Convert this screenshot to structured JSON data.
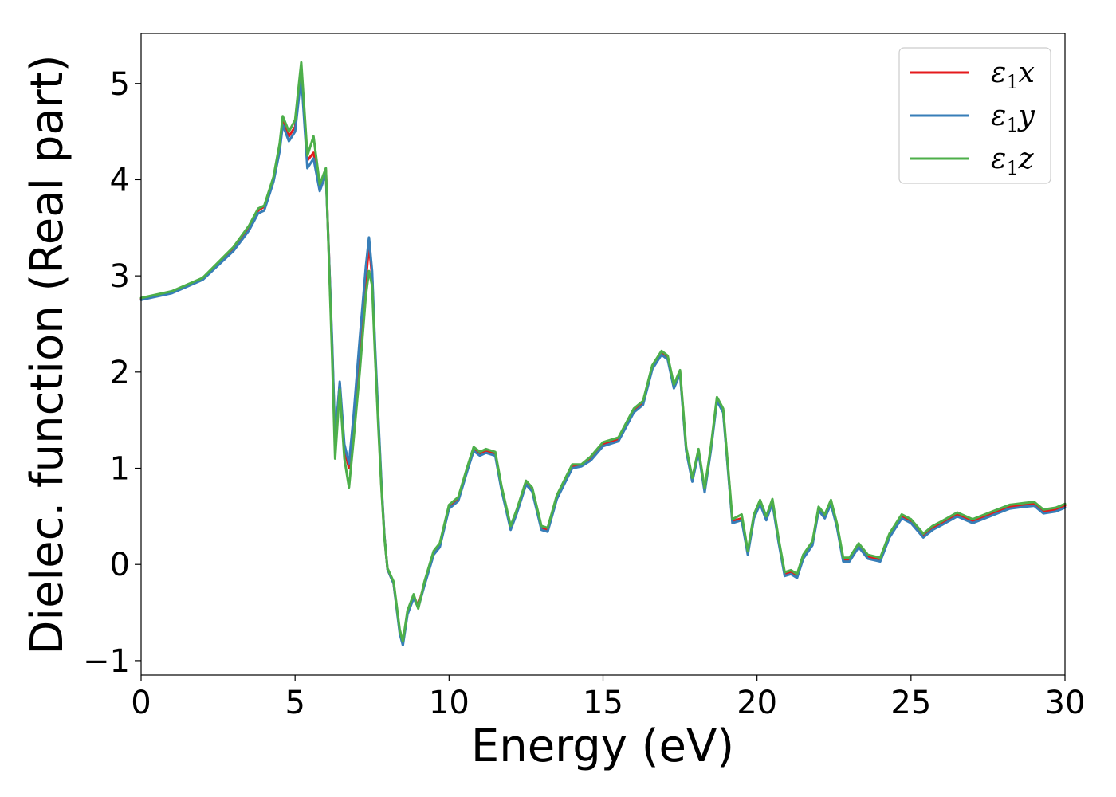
{
  "chart_data": {
    "type": "line",
    "title": "",
    "xlabel": "Energy (eV)",
    "ylabel": "Dielec. function (Real part)",
    "xlim": [
      0,
      30
    ],
    "ylim": [
      -1.15,
      5.52
    ],
    "xticks": [
      0,
      5,
      10,
      15,
      20,
      25,
      30
    ],
    "xtick_labels": [
      "0",
      "5",
      "10",
      "15",
      "20",
      "25",
      "30"
    ],
    "yticks": [
      -1,
      0,
      1,
      2,
      3,
      4,
      5
    ],
    "ytick_labels": [
      "−1",
      "0",
      "1",
      "2",
      "3",
      "4",
      "5"
    ],
    "grid": false,
    "legend_position": "top-right",
    "series": [
      {
        "name": "ε1x",
        "legend_symbol": "ε",
        "legend_subscript": "1",
        "legend_suffix": "x",
        "color": "#e41a1c",
        "x": [
          0,
          1,
          2,
          3,
          3.5,
          3.8,
          4,
          4.3,
          4.5,
          4.6,
          4.8,
          5,
          5.2,
          5.4,
          5.6,
          5.8,
          6,
          6.1,
          6.2,
          6.3,
          6.45,
          6.6,
          6.75,
          6.9,
          7.1,
          7.3,
          7.4,
          7.5,
          7.6,
          7.7,
          7.8,
          7.9,
          8,
          8.2,
          8.4,
          8.5,
          8.65,
          8.85,
          9,
          9.2,
          9.5,
          9.7,
          10,
          10.3,
          10.6,
          10.8,
          11,
          11.2,
          11.5,
          11.7,
          12,
          12.2,
          12.5,
          12.7,
          13,
          13.2,
          13.5,
          14,
          14.3,
          14.6,
          15,
          15.5,
          16,
          16.3,
          16.6,
          16.9,
          17.1,
          17.3,
          17.5,
          17.7,
          17.9,
          18.1,
          18.3,
          18.5,
          18.7,
          18.9,
          19.2,
          19.5,
          19.7,
          19.9,
          20.1,
          20.3,
          20.5,
          20.7,
          20.9,
          21.1,
          21.3,
          21.5,
          21.8,
          22,
          22.2,
          22.4,
          22.6,
          22.8,
          23,
          23.3,
          23.6,
          24,
          24.3,
          24.7,
          25,
          25.4,
          25.7,
          26,
          26.5,
          27,
          27.4,
          27.8,
          28.2,
          28.7,
          29,
          29.3,
          29.7,
          30
        ],
        "y": [
          2.76,
          2.83,
          2.97,
          3.28,
          3.5,
          3.68,
          3.72,
          4.0,
          4.32,
          4.6,
          4.45,
          4.55,
          5.15,
          4.2,
          4.28,
          3.92,
          4.1,
          3.2,
          2.3,
          1.28,
          1.88,
          1.2,
          1.0,
          1.45,
          2.2,
          2.95,
          3.32,
          3.0,
          2.2,
          1.5,
          0.85,
          0.3,
          -0.05,
          -0.2,
          -0.7,
          -0.82,
          -0.5,
          -0.33,
          -0.43,
          -0.2,
          0.12,
          0.2,
          0.6,
          0.68,
          1.0,
          1.2,
          1.15,
          1.18,
          1.15,
          0.8,
          0.38,
          0.55,
          0.85,
          0.78,
          0.38,
          0.36,
          0.7,
          1.02,
          1.03,
          1.1,
          1.25,
          1.3,
          1.6,
          1.68,
          2.05,
          2.2,
          2.15,
          1.85,
          2.0,
          1.2,
          0.88,
          1.18,
          0.77,
          1.2,
          1.72,
          1.6,
          0.45,
          0.48,
          0.12,
          0.5,
          0.65,
          0.48,
          0.66,
          0.25,
          -0.1,
          -0.08,
          -0.12,
          0.08,
          0.22,
          0.58,
          0.5,
          0.65,
          0.4,
          0.05,
          0.05,
          0.2,
          0.08,
          0.05,
          0.3,
          0.5,
          0.45,
          0.3,
          0.38,
          0.43,
          0.52,
          0.45,
          0.5,
          0.55,
          0.6,
          0.62,
          0.63,
          0.55,
          0.57,
          0.61
        ]
      },
      {
        "name": "ε1y",
        "legend_symbol": "ε",
        "legend_subscript": "1",
        "legend_suffix": "y",
        "color": "#377eb8",
        "x": [
          0,
          1,
          2,
          3,
          3.5,
          3.8,
          4,
          4.3,
          4.5,
          4.6,
          4.8,
          5,
          5.2,
          5.4,
          5.6,
          5.8,
          6,
          6.1,
          6.2,
          6.3,
          6.45,
          6.6,
          6.75,
          6.9,
          7.1,
          7.3,
          7.4,
          7.5,
          7.6,
          7.7,
          7.8,
          7.9,
          8,
          8.2,
          8.4,
          8.5,
          8.65,
          8.85,
          9,
          9.2,
          9.5,
          9.7,
          10,
          10.3,
          10.6,
          10.8,
          11,
          11.2,
          11.5,
          11.7,
          12,
          12.2,
          12.5,
          12.7,
          13,
          13.2,
          13.5,
          14,
          14.3,
          14.6,
          15,
          15.5,
          16,
          16.3,
          16.6,
          16.9,
          17.1,
          17.3,
          17.5,
          17.7,
          17.9,
          18.1,
          18.3,
          18.5,
          18.7,
          18.9,
          19.2,
          19.5,
          19.7,
          19.9,
          20.1,
          20.3,
          20.5,
          20.7,
          20.9,
          21.1,
          21.3,
          21.5,
          21.8,
          22,
          22.2,
          22.4,
          22.6,
          22.8,
          23,
          23.3,
          23.6,
          24,
          24.3,
          24.7,
          25,
          25.4,
          25.7,
          26,
          26.5,
          27,
          27.4,
          27.8,
          28.2,
          28.7,
          29,
          29.3,
          29.7,
          30
        ],
        "y": [
          2.75,
          2.82,
          2.96,
          3.26,
          3.47,
          3.65,
          3.68,
          3.98,
          4.3,
          4.57,
          4.4,
          4.5,
          5.08,
          4.12,
          4.22,
          3.88,
          4.06,
          3.2,
          2.35,
          1.3,
          1.9,
          1.25,
          1.05,
          1.55,
          2.35,
          3.1,
          3.4,
          3.05,
          2.25,
          1.55,
          0.88,
          0.3,
          -0.05,
          -0.2,
          -0.72,
          -0.84,
          -0.52,
          -0.35,
          -0.45,
          -0.22,
          0.1,
          0.18,
          0.58,
          0.66,
          0.98,
          1.18,
          1.13,
          1.16,
          1.13,
          0.78,
          0.36,
          0.53,
          0.83,
          0.76,
          0.36,
          0.34,
          0.68,
          1.0,
          1.02,
          1.08,
          1.23,
          1.28,
          1.58,
          1.66,
          2.03,
          2.18,
          2.13,
          1.83,
          1.98,
          1.18,
          0.86,
          1.16,
          0.75,
          1.18,
          1.7,
          1.58,
          0.43,
          0.46,
          0.1,
          0.48,
          0.63,
          0.46,
          0.64,
          0.23,
          -0.12,
          -0.1,
          -0.14,
          0.06,
          0.2,
          0.56,
          0.48,
          0.63,
          0.38,
          0.03,
          0.03,
          0.18,
          0.06,
          0.03,
          0.28,
          0.48,
          0.43,
          0.28,
          0.36,
          0.41,
          0.5,
          0.43,
          0.48,
          0.53,
          0.58,
          0.6,
          0.61,
          0.53,
          0.55,
          0.59
        ]
      },
      {
        "name": "ε1z",
        "legend_symbol": "ε",
        "legend_subscript": "1",
        "legend_suffix": "z",
        "color": "#4daf4a",
        "x": [
          0,
          1,
          2,
          3,
          3.5,
          3.8,
          4,
          4.3,
          4.5,
          4.6,
          4.8,
          5,
          5.2,
          5.4,
          5.6,
          5.8,
          6,
          6.1,
          6.2,
          6.3,
          6.45,
          6.6,
          6.75,
          6.9,
          7.1,
          7.3,
          7.4,
          7.5,
          7.6,
          7.7,
          7.8,
          7.9,
          8,
          8.2,
          8.4,
          8.5,
          8.65,
          8.85,
          9,
          9.2,
          9.5,
          9.7,
          10,
          10.3,
          10.6,
          10.8,
          11,
          11.2,
          11.5,
          11.7,
          12,
          12.2,
          12.5,
          12.7,
          13,
          13.2,
          13.5,
          14,
          14.3,
          14.6,
          15,
          15.5,
          16,
          16.3,
          16.6,
          16.9,
          17.1,
          17.3,
          17.5,
          17.7,
          17.9,
          18.1,
          18.3,
          18.5,
          18.7,
          18.9,
          19.2,
          19.5,
          19.7,
          19.9,
          20.1,
          20.3,
          20.5,
          20.7,
          20.9,
          21.1,
          21.3,
          21.5,
          21.8,
          22,
          22.2,
          22.4,
          22.6,
          22.8,
          23,
          23.3,
          23.6,
          24,
          24.3,
          24.7,
          25,
          25.4,
          25.7,
          26,
          26.5,
          27,
          27.4,
          27.8,
          28.2,
          28.7,
          29,
          29.3,
          29.7,
          30
        ],
        "y": [
          2.77,
          2.84,
          2.98,
          3.3,
          3.52,
          3.7,
          3.73,
          4.03,
          4.38,
          4.66,
          4.5,
          4.62,
          5.22,
          4.25,
          4.45,
          3.95,
          4.12,
          3.15,
          2.2,
          1.1,
          1.82,
          1.1,
          0.8,
          1.3,
          2.0,
          2.8,
          3.05,
          2.9,
          2.15,
          1.45,
          0.82,
          0.28,
          -0.04,
          -0.18,
          -0.68,
          -0.8,
          -0.48,
          -0.31,
          -0.46,
          -0.18,
          0.14,
          0.22,
          0.62,
          0.7,
          1.02,
          1.22,
          1.17,
          1.2,
          1.17,
          0.82,
          0.4,
          0.57,
          0.87,
          0.8,
          0.4,
          0.38,
          0.72,
          1.04,
          1.04,
          1.12,
          1.27,
          1.32,
          1.62,
          1.7,
          2.07,
          2.22,
          2.17,
          1.87,
          2.02,
          1.22,
          0.9,
          1.2,
          0.79,
          1.22,
          1.74,
          1.62,
          0.47,
          0.52,
          0.14,
          0.52,
          0.67,
          0.5,
          0.68,
          0.27,
          -0.08,
          -0.06,
          -0.1,
          0.1,
          0.24,
          0.6,
          0.52,
          0.67,
          0.42,
          0.07,
          0.07,
          0.22,
          0.1,
          0.07,
          0.32,
          0.52,
          0.47,
          0.32,
          0.4,
          0.45,
          0.54,
          0.47,
          0.52,
          0.57,
          0.62,
          0.64,
          0.65,
          0.57,
          0.59,
          0.63
        ]
      }
    ]
  }
}
